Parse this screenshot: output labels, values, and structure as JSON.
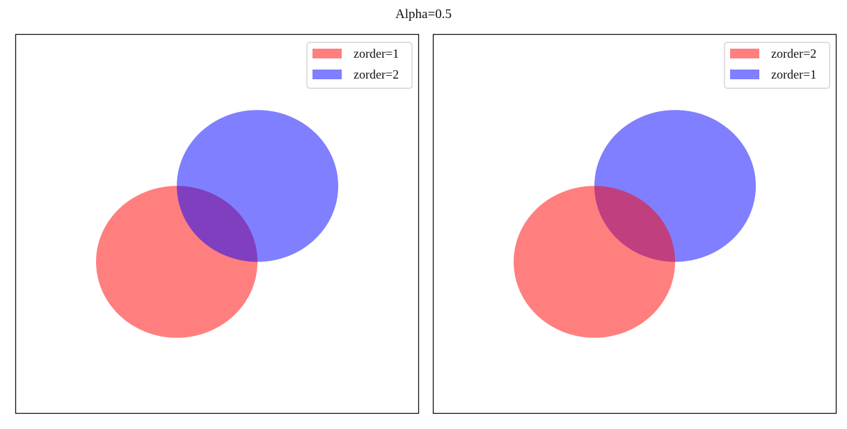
{
  "figure": {
    "title": "Alpha=0.5"
  },
  "chart_data": [
    {
      "type": "scatter",
      "title": "",
      "xlabel": "",
      "ylabel": "",
      "xlim": [
        0,
        1
      ],
      "ylim": [
        0,
        1
      ],
      "grid": false,
      "ticks": false,
      "legend_position": "top-right",
      "series": [
        {
          "name": "zorder=1",
          "shape": "circle",
          "color": "#ff0000",
          "alpha": 0.5,
          "zorder": 1,
          "center": [
            0.4,
            0.4
          ],
          "radius": 0.2
        },
        {
          "name": "zorder=2",
          "shape": "circle",
          "color": "#0000ff",
          "alpha": 0.5,
          "zorder": 2,
          "center": [
            0.6,
            0.6
          ],
          "radius": 0.2
        }
      ]
    },
    {
      "type": "scatter",
      "title": "",
      "xlabel": "",
      "ylabel": "",
      "xlim": [
        0,
        1
      ],
      "ylim": [
        0,
        1
      ],
      "grid": false,
      "ticks": false,
      "legend_position": "top-right",
      "series": [
        {
          "name": "zorder=2",
          "shape": "circle",
          "color": "#ff0000",
          "alpha": 0.5,
          "zorder": 2,
          "center": [
            0.4,
            0.4
          ],
          "radius": 0.2
        },
        {
          "name": "zorder=1",
          "shape": "circle",
          "color": "#0000ff",
          "alpha": 0.5,
          "zorder": 1,
          "center": [
            0.6,
            0.6
          ],
          "radius": 0.2
        }
      ]
    }
  ]
}
